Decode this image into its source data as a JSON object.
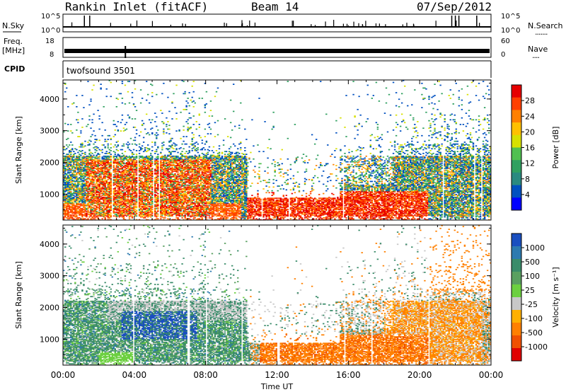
{
  "header": {
    "title": "Rankin Inlet (fitACF)",
    "beam": "Beam 14",
    "date": "07/Sep/2012"
  },
  "panels": {
    "sky": {
      "label": "N.Sky",
      "left_ticks": [
        "10^5",
        "10^0"
      ],
      "right_ticks": [
        "10^5",
        "10^0"
      ],
      "right_label": "N.Search",
      "right_label_decor": "......."
    },
    "freq": {
      "label_line1": "Freq.",
      "label_line2": "[MHz]",
      "left_ticks": [
        "18",
        "8"
      ],
      "right_ticks": [
        "60",
        "0"
      ],
      "right_label": "Nave",
      "right_label_decor": "...."
    },
    "cpid": {
      "label": "CPID",
      "value": "twofsound 3501"
    }
  },
  "chart_data": [
    {
      "type": "heatmap",
      "title": "",
      "xlabel": "Time UT",
      "ylabel": "Slant Range [km]",
      "x_ticks": [
        "00:00",
        "04:00",
        "08:00",
        "12:00",
        "16:00",
        "20:00",
        "00:00"
      ],
      "x_tick_values_hours": [
        0,
        4,
        8,
        12,
        16,
        20,
        24
      ],
      "xlim_hours": [
        0,
        24
      ],
      "y_ticks": [
        1000,
        2000,
        3000,
        4000
      ],
      "ylim": [
        180,
        4600
      ],
      "colorbar": {
        "label": "Power [dB]",
        "tick_labels": [
          "28",
          "24",
          "20",
          "16",
          "12",
          "8",
          "4"
        ],
        "colors": [
          "#e60000",
          "#ff4000",
          "#ff8000",
          "#ffc000",
          "#d7e000",
          "#50c050",
          "#30a060",
          "#2a8a80",
          "#0050c0",
          "#0000ff"
        ]
      }
    },
    {
      "type": "heatmap",
      "title": "",
      "xlabel": "Time UT",
      "ylabel": "Slant Range [km]",
      "x_ticks": [
        "00:00",
        "04:00",
        "08:00",
        "12:00",
        "16:00",
        "20:00",
        "00:00"
      ],
      "x_tick_values_hours": [
        0,
        4,
        8,
        12,
        16,
        20,
        24
      ],
      "xlim_hours": [
        0,
        24
      ],
      "y_ticks": [
        1000,
        2000,
        3000,
        4000
      ],
      "ylim": [
        180,
        4600
      ],
      "colorbar": {
        "label": "Velocity [m s⁻¹]",
        "tick_labels": [
          "1000",
          "500",
          "100",
          "25",
          "-25",
          "-100",
          "-500",
          "-1000"
        ],
        "colors": [
          "#1a4fc0",
          "#2d7ab0",
          "#3a8c6a",
          "#5aa060",
          "#6cd040",
          "#c8c8c8",
          "#ffb000",
          "#ff8000",
          "#f05000",
          "#e00000"
        ]
      }
    }
  ]
}
